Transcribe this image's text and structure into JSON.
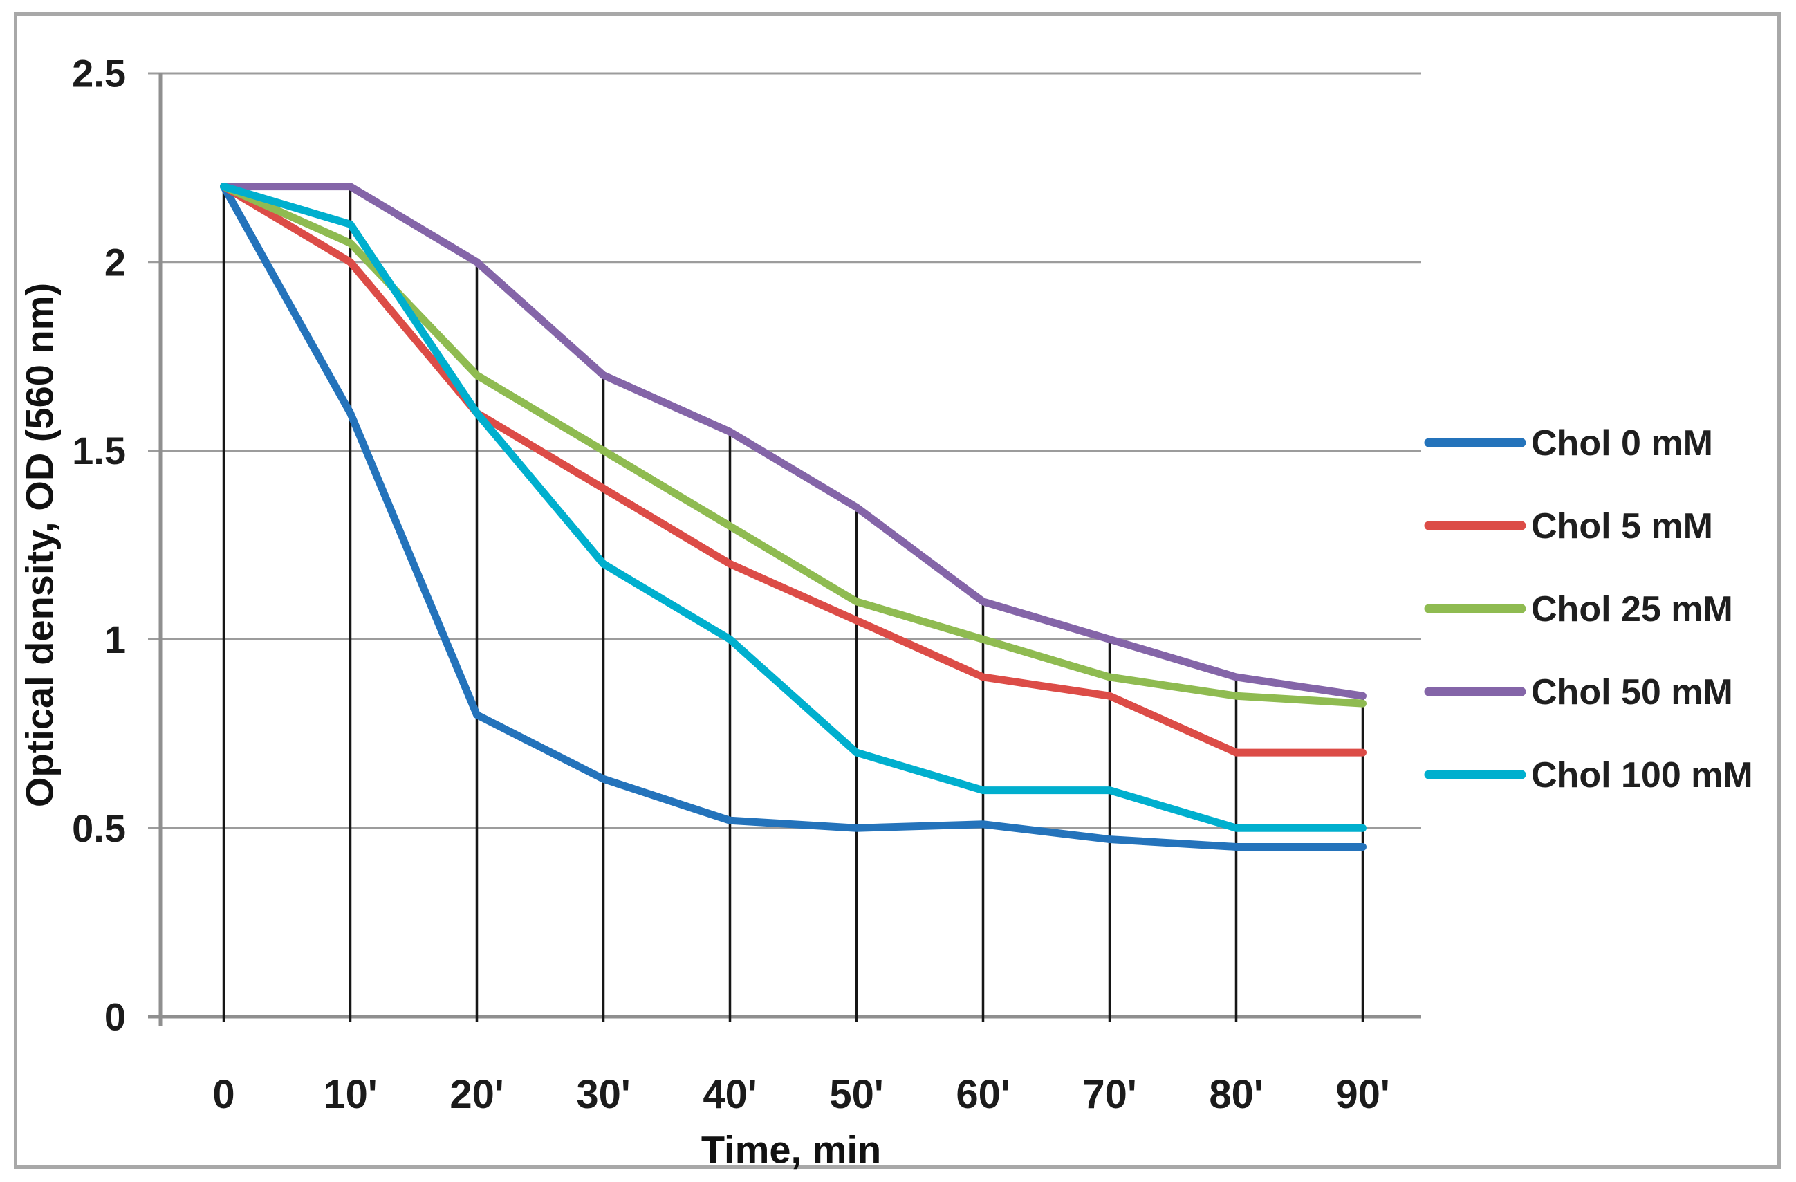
{
  "chart_data": {
    "type": "line",
    "title": "",
    "xlabel": "Time, min",
    "ylabel": "Optical density, OD (560 nm)",
    "categories": [
      "0",
      "10'",
      "20'",
      "30'",
      "40'",
      "50'",
      "60'",
      "70'",
      "80'",
      "90'"
    ],
    "x_minutes": [
      0,
      10,
      20,
      30,
      40,
      50,
      60,
      70,
      80,
      90
    ],
    "y_ticks": [
      "0",
      "0.5",
      "1",
      "1.5",
      "2",
      "2.5"
    ],
    "y_tick_values": [
      0,
      0.5,
      1,
      1.5,
      2,
      2.5
    ],
    "ylim": [
      0,
      2.5
    ],
    "grid": "horizontal",
    "drop_lines": true,
    "legend_position": "right",
    "series": [
      {
        "name": "Chol 0 mM",
        "color": "#2473bb",
        "values": [
          2.2,
          1.6,
          0.8,
          0.63,
          0.52,
          0.5,
          0.51,
          0.47,
          0.45,
          0.45
        ]
      },
      {
        "name": "Chol 5 mM",
        "color": "#dc4c47",
        "values": [
          2.2,
          2.0,
          1.6,
          1.4,
          1.2,
          1.05,
          0.9,
          0.85,
          0.7,
          0.7
        ]
      },
      {
        "name": "Chol 25 mM",
        "color": "#8fbb51",
        "values": [
          2.2,
          2.05,
          1.7,
          1.5,
          1.3,
          1.1,
          1.0,
          0.9,
          0.85,
          0.83
        ]
      },
      {
        "name": "Chol 50 mM",
        "color": "#8465a8",
        "values": [
          2.2,
          2.2,
          2.0,
          1.7,
          1.55,
          1.35,
          1.1,
          1.0,
          0.9,
          0.85
        ]
      },
      {
        "name": "Chol 100 mM",
        "color": "#00afce",
        "values": [
          2.2,
          2.1,
          1.6,
          1.2,
          1.0,
          0.7,
          0.6,
          0.6,
          0.5,
          0.5
        ]
      }
    ]
  },
  "style": {
    "grid_color": "#9c9c9c",
    "axis_color": "#8f8f8f",
    "drop_line_color": "#161616",
    "border_color": "#a8a8a8",
    "text_color": "#1b1b1b",
    "background": "#ffffff"
  }
}
